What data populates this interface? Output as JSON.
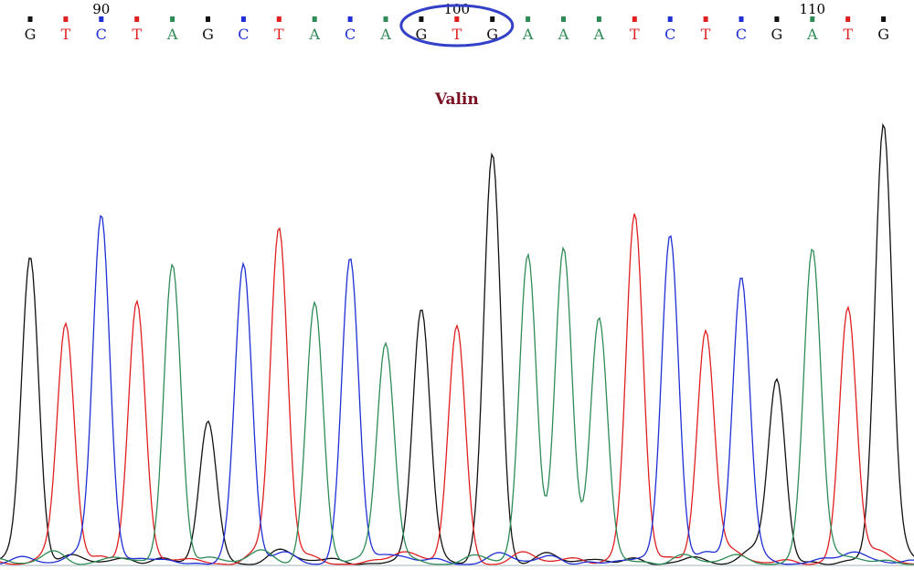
{
  "chart_data": {
    "type": "line",
    "title": "",
    "xlabel": "",
    "ylabel": "",
    "grid": false,
    "channel_colors": {
      "A": "#2e8b57",
      "C": "#1f2fd6",
      "G": "#111111",
      "T": "#e02020"
    },
    "base_calls": {
      "positions": [
        88,
        89,
        90,
        91,
        92,
        93,
        94,
        95,
        96,
        97,
        98,
        99,
        100,
        101,
        102,
        103,
        104,
        105,
        106,
        107,
        108,
        109,
        110,
        111,
        112
      ],
      "bases": [
        "G",
        "T",
        "C",
        "T",
        "A",
        "G",
        "C",
        "T",
        "A",
        "C",
        "A",
        "G",
        "T",
        "G",
        "A",
        "A",
        "A",
        "T",
        "C",
        "T",
        "C",
        "G",
        "A",
        "T",
        "G"
      ],
      "position_labels": [
        {
          "position": 90,
          "label": "90"
        },
        {
          "position": 100,
          "label": "100"
        },
        {
          "position": 110,
          "label": "110"
        }
      ]
    },
    "series": [
      {
        "channel": "G",
        "peaks": [
          {
            "position": 88,
            "height": 0.71
          },
          {
            "position": 93,
            "height": 0.32
          },
          {
            "position": 99,
            "height": 0.56
          },
          {
            "position": 101,
            "height": 0.94
          },
          {
            "position": 109,
            "height": 0.42
          },
          {
            "position": 112,
            "height": 1.0
          }
        ]
      },
      {
        "channel": "T",
        "peaks": [
          {
            "position": 89,
            "height": 0.55
          },
          {
            "position": 91,
            "height": 0.6
          },
          {
            "position": 95,
            "height": 0.77
          },
          {
            "position": 100,
            "height": 0.54
          },
          {
            "position": 105,
            "height": 0.81
          },
          {
            "position": 107,
            "height": 0.54
          },
          {
            "position": 111,
            "height": 0.58
          }
        ]
      },
      {
        "channel": "C",
        "peaks": [
          {
            "position": 90,
            "height": 0.81
          },
          {
            "position": 94,
            "height": 0.68
          },
          {
            "position": 97,
            "height": 0.7
          },
          {
            "position": 106,
            "height": 0.76
          },
          {
            "position": 108,
            "height": 0.66
          }
        ]
      },
      {
        "channel": "A",
        "peaks": [
          {
            "position": 92,
            "height": 0.69
          },
          {
            "position": 96,
            "height": 0.6
          },
          {
            "position": 98,
            "height": 0.49
          },
          {
            "position": 102,
            "height": 0.69
          },
          {
            "position": 103,
            "height": 0.73
          },
          {
            "position": 104,
            "height": 0.56
          },
          {
            "position": 110,
            "height": 0.72
          }
        ]
      }
    ],
    "annotation": {
      "text": "Valin",
      "color": "#7a1020",
      "highlighted_codon": {
        "positions": [
          99,
          100,
          101
        ],
        "bases": "GTG",
        "outline_color": "#3340c8"
      }
    }
  }
}
